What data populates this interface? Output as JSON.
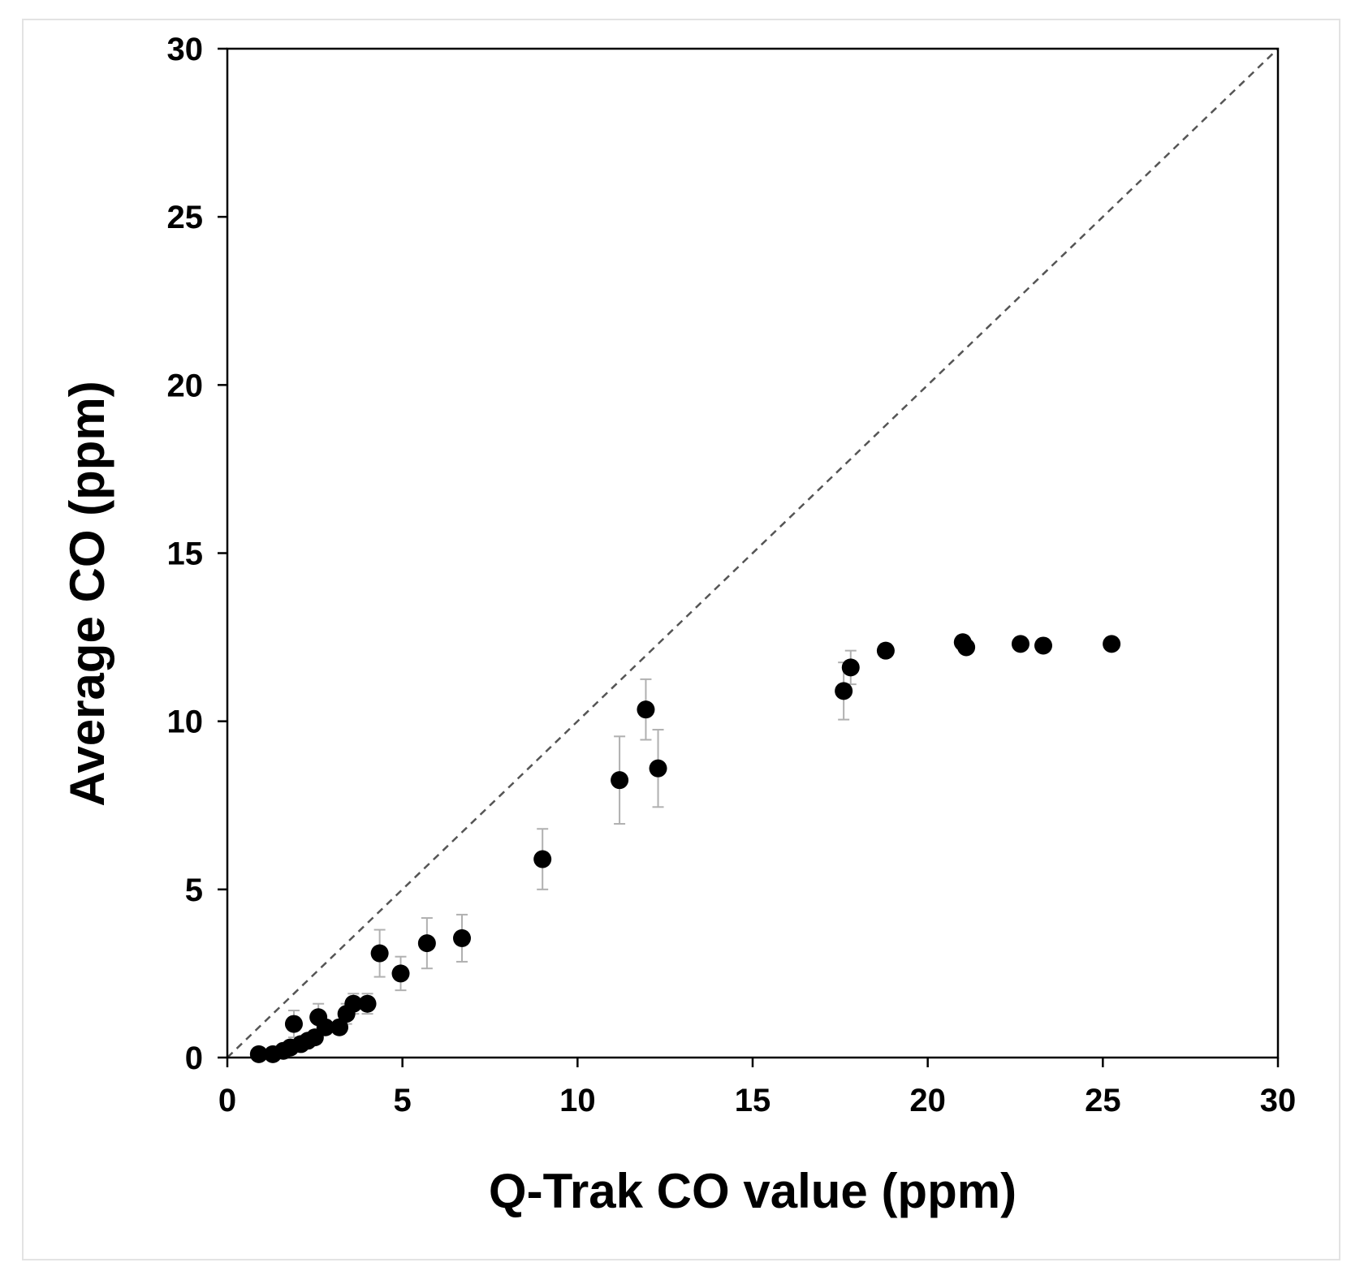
{
  "chart_data": {
    "type": "scatter",
    "title": "",
    "xlabel": "Q-Trak CO value (ppm)",
    "ylabel": "Average CO (ppm)",
    "xlim": [
      0,
      30
    ],
    "ylim": [
      0,
      30
    ],
    "x_ticks": [
      0,
      5,
      10,
      15,
      20,
      25,
      30
    ],
    "y_ticks": [
      0,
      5,
      10,
      15,
      20,
      25,
      30
    ],
    "grid": false,
    "legend": "none",
    "reference_line": {
      "name": "1:1 line",
      "style": "dashed",
      "from": [
        0,
        0
      ],
      "to": [
        30,
        30
      ]
    },
    "colors": {
      "points": "#000000",
      "error_bars": "#b0b0b0",
      "reference_line": "#555555",
      "axes": "#000000"
    },
    "series": [
      {
        "name": "Average CO",
        "points": [
          {
            "x": 0.9,
            "y": 0.1,
            "err": 0
          },
          {
            "x": 1.3,
            "y": 0.1,
            "err": 0
          },
          {
            "x": 1.6,
            "y": 0.2,
            "err": 0
          },
          {
            "x": 1.8,
            "y": 0.3,
            "err": 0
          },
          {
            "x": 1.9,
            "y": 1.0,
            "err": 0.4
          },
          {
            "x": 2.1,
            "y": 0.4,
            "err": 0
          },
          {
            "x": 2.3,
            "y": 0.5,
            "err": 0
          },
          {
            "x": 2.5,
            "y": 0.6,
            "err": 0.2
          },
          {
            "x": 2.6,
            "y": 1.2,
            "err": 0.4
          },
          {
            "x": 2.8,
            "y": 0.9,
            "err": 0.2
          },
          {
            "x": 3.2,
            "y": 0.9,
            "err": 0.2
          },
          {
            "x": 3.4,
            "y": 1.3,
            "err": 0.3
          },
          {
            "x": 3.6,
            "y": 1.6,
            "err": 0.3
          },
          {
            "x": 4.0,
            "y": 1.6,
            "err": 0.3
          },
          {
            "x": 4.35,
            "y": 3.1,
            "err": 0.7
          },
          {
            "x": 4.95,
            "y": 2.5,
            "err": 0.5
          },
          {
            "x": 5.7,
            "y": 3.4,
            "err": 0.75
          },
          {
            "x": 6.7,
            "y": 3.55,
            "err": 0.7
          },
          {
            "x": 9.0,
            "y": 5.9,
            "err": 0.9
          },
          {
            "x": 11.2,
            "y": 8.25,
            "err": 1.3
          },
          {
            "x": 11.95,
            "y": 10.35,
            "err": 0.9
          },
          {
            "x": 12.3,
            "y": 8.6,
            "err": 1.15
          },
          {
            "x": 17.6,
            "y": 10.9,
            "err": 0.85
          },
          {
            "x": 17.8,
            "y": 11.6,
            "err": 0.5
          },
          {
            "x": 18.8,
            "y": 12.1,
            "err": 0.2
          },
          {
            "x": 21.0,
            "y": 12.35,
            "err": 0.2
          },
          {
            "x": 21.1,
            "y": 12.2,
            "err": 0.15
          },
          {
            "x": 22.65,
            "y": 12.3,
            "err": 0.15
          },
          {
            "x": 23.3,
            "y": 12.25,
            "err": 0.15
          },
          {
            "x": 25.25,
            "y": 12.3,
            "err": 0.15
          }
        ]
      }
    ]
  }
}
